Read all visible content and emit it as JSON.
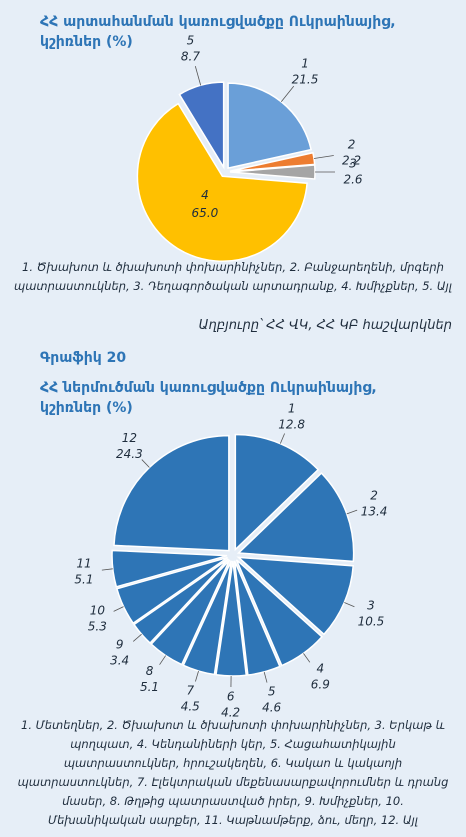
{
  "chart_data": [
    {
      "type": "pie",
      "title": "ՀՀ արտահանման կառուցվածքը Ուկրաինայից, կշիռներ (%)",
      "categories": [
        "1",
        "2",
        "3",
        "4",
        "5"
      ],
      "values": [
        21.5,
        2.2,
        2.6,
        65,
        8.7
      ],
      "value_labels": [
        "21.5",
        "2.2",
        "2.6",
        "65.0",
        "8.7"
      ],
      "colors": [
        "#6a9fd8",
        "#ed7d31",
        "#a5a5a5",
        "#ffc000",
        "#4472c4"
      ],
      "note": "1. Ծխախոտ և ծխախոտի փոխարինիչներ, 2. Բանջարեղենի, մրգերի պատրաստուկներ, 3. Դեղագործական արտադրանք, 4. Խմիչքներ, 5. Այլ",
      "source": "Աղբյուրը՝ ՀՀ ՎԿ, ՀՀ ԿԲ հաշվարկներ"
    },
    {
      "type": "pie",
      "figure_label": "Գրաֆիկ 20",
      "title": "ՀՀ ներմուծման կառուցվածքը Ուկրաինայից, կշիռներ (%)",
      "categories": [
        "1",
        "2",
        "3",
        "4",
        "5",
        "6",
        "7",
        "8",
        "9",
        "10",
        "11",
        "12"
      ],
      "values": [
        12.8,
        13.4,
        10.5,
        6.9,
        4.6,
        4.2,
        4.5,
        5.1,
        3.4,
        5.3,
        5.1,
        24.3
      ],
      "color": "#2e75b6",
      "note": "1. Մետեղներ, 2. Ծխախոտ և ծխախոտի փոխարինիչներ, 3. Երկաթ և պողպատ, 4. Կենդանիների կեր, 5. Հացահատիկային պատրաստուկներ, հրուշակեղեն, 6. Կակաո և կակաոյի պատրաստուկներ, 7. Էլեկտրական մեքենասարքավորումներ և դրանց մասեր, 8. Թղթից պատրաստված իրեր, 9. Խմիչքներ, 10. Մեխանիկական սարքեր, 11. Կաթնամթերք, ձու, մեղր, 12. Այլ"
    }
  ]
}
